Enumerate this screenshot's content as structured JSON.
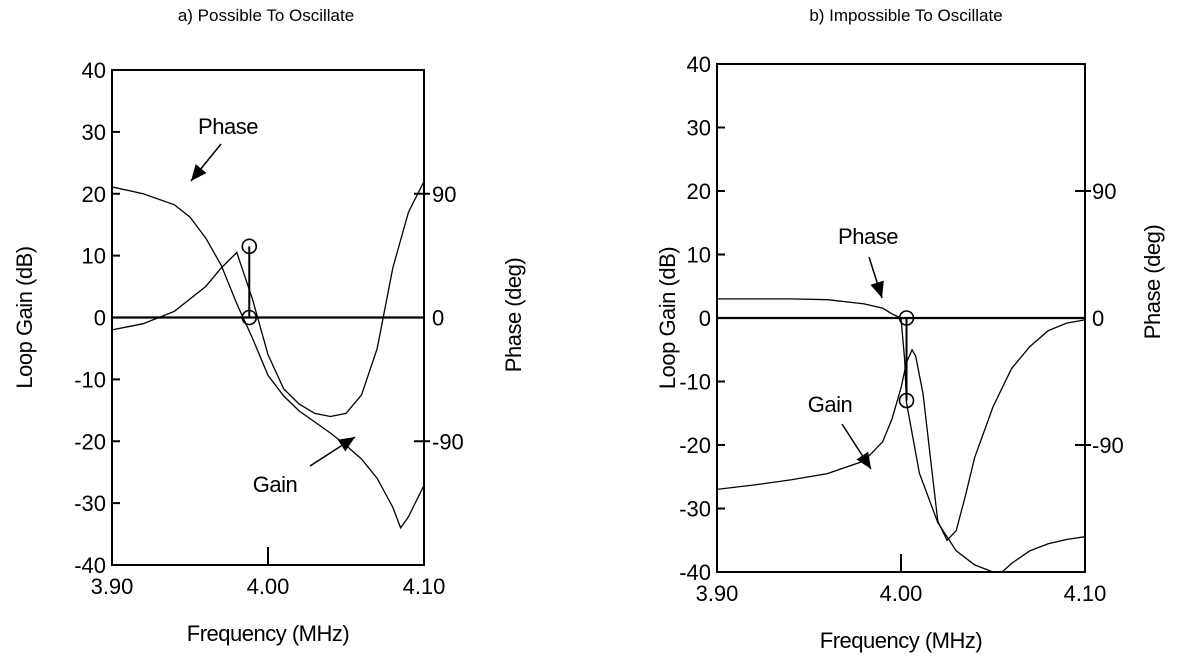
{
  "chart_data": [
    {
      "type": "line",
      "title": "a) Possible To Oscillate",
      "xlabel": "Frequency (MHz)",
      "ylabel": "Loop Gain (dB)",
      "y2label": "Phase (deg)",
      "xlim": [
        3.9,
        4.1
      ],
      "ylim": [
        -40,
        40
      ],
      "y2lim": [
        -180,
        180
      ],
      "x_ticks": [
        "3.90",
        "4.00",
        "4.10"
      ],
      "y_ticks": [
        "40",
        "30",
        "20",
        "10",
        "0",
        "-10",
        "-20",
        "-30",
        "-40"
      ],
      "y2_ticks": [
        "90",
        "0",
        "-90"
      ],
      "grid": false,
      "series": [
        {
          "name": "Phase",
          "axis": "right",
          "x": [
            3.9,
            3.92,
            3.94,
            3.95,
            3.96,
            3.97,
            3.98,
            3.99,
            4.0,
            4.01,
            4.02,
            4.03,
            4.04,
            4.05,
            4.06,
            4.07,
            4.08,
            4.085,
            4.09,
            4.1
          ],
          "y": [
            95,
            90,
            82,
            73,
            58,
            38,
            10,
            -15,
            -42,
            -57,
            -68,
            -76,
            -84,
            -93,
            -103,
            -117,
            -138,
            -153,
            -145,
            -122
          ]
        },
        {
          "name": "Gain",
          "axis": "left",
          "x": [
            3.9,
            3.92,
            3.94,
            3.96,
            3.97,
            3.98,
            3.99,
            4.0,
            4.01,
            4.02,
            4.03,
            4.04,
            4.05,
            4.06,
            4.07,
            4.08,
            4.09,
            4.1
          ],
          "y": [
            -2,
            -1,
            1,
            5,
            8,
            10.5,
            3,
            -6,
            -11.5,
            -14,
            -15.5,
            -16,
            -15.5,
            -12.5,
            -5,
            8,
            17,
            22
          ]
        }
      ],
      "annotations": [
        {
          "text": "Phase",
          "points_to": "Phase"
        },
        {
          "text": "Gain",
          "points_to": "Gain"
        }
      ]
    },
    {
      "type": "line",
      "title": "b) Impossible To Oscillate",
      "xlabel": "Frequency (MHz)",
      "ylabel": "Loop Gain (dB)",
      "y2label": "Phase (deg)",
      "xlim": [
        3.9,
        4.1
      ],
      "ylim": [
        -40,
        40
      ],
      "y2lim": [
        -180,
        180
      ],
      "x_ticks": [
        "3.90",
        "4.00",
        "4.10"
      ],
      "y_ticks": [
        "40",
        "30",
        "20",
        "10",
        "0",
        "-10",
        "-20",
        "-30",
        "-40"
      ],
      "y2_ticks": [
        "90",
        "0",
        "-90"
      ],
      "grid": false,
      "series": [
        {
          "name": "Phase",
          "axis": "right",
          "x": [
            3.9,
            3.94,
            3.96,
            3.98,
            3.99,
            3.995,
            4.0,
            4.002,
            4.003,
            4.01,
            4.02,
            4.03,
            4.04,
            4.05,
            4.055
          ],
          "y": [
            13.5,
            13.5,
            13,
            10,
            7,
            3,
            0,
            -30,
            -60,
            -110,
            -145,
            -165,
            -175,
            -180,
            -180
          ]
        },
        {
          "name": "Gain",
          "axis": "left",
          "x": [
            3.9,
            3.92,
            3.94,
            3.96,
            3.98,
            3.99,
            3.995,
            4.0,
            4.003,
            4.006,
            4.008,
            4.012,
            4.016,
            4.02,
            4.025,
            4.03,
            4.035,
            4.04,
            4.05,
            4.06,
            4.07,
            4.08,
            4.09,
            4.1
          ],
          "y": [
            -27,
            -26.3,
            -25.5,
            -24.5,
            -22.5,
            -19.5,
            -16,
            -11,
            -7,
            -5,
            -6,
            -12,
            -22,
            -32,
            -35,
            -33.5,
            -28,
            -22,
            -14,
            -8,
            -4.5,
            -2,
            -0.8,
            -0.3
          ]
        },
        {
          "name": "",
          "axis": "right",
          "x": [
            4.055,
            4.06,
            4.07,
            4.08,
            4.09,
            4.1
          ],
          "y": [
            -180,
            -174,
            -165,
            -160,
            -157,
            -155
          ]
        }
      ],
      "annotations": [
        {
          "text": "Phase",
          "points_to": "Phase"
        },
        {
          "text": "Gain",
          "points_to": "Gain"
        }
      ]
    }
  ]
}
